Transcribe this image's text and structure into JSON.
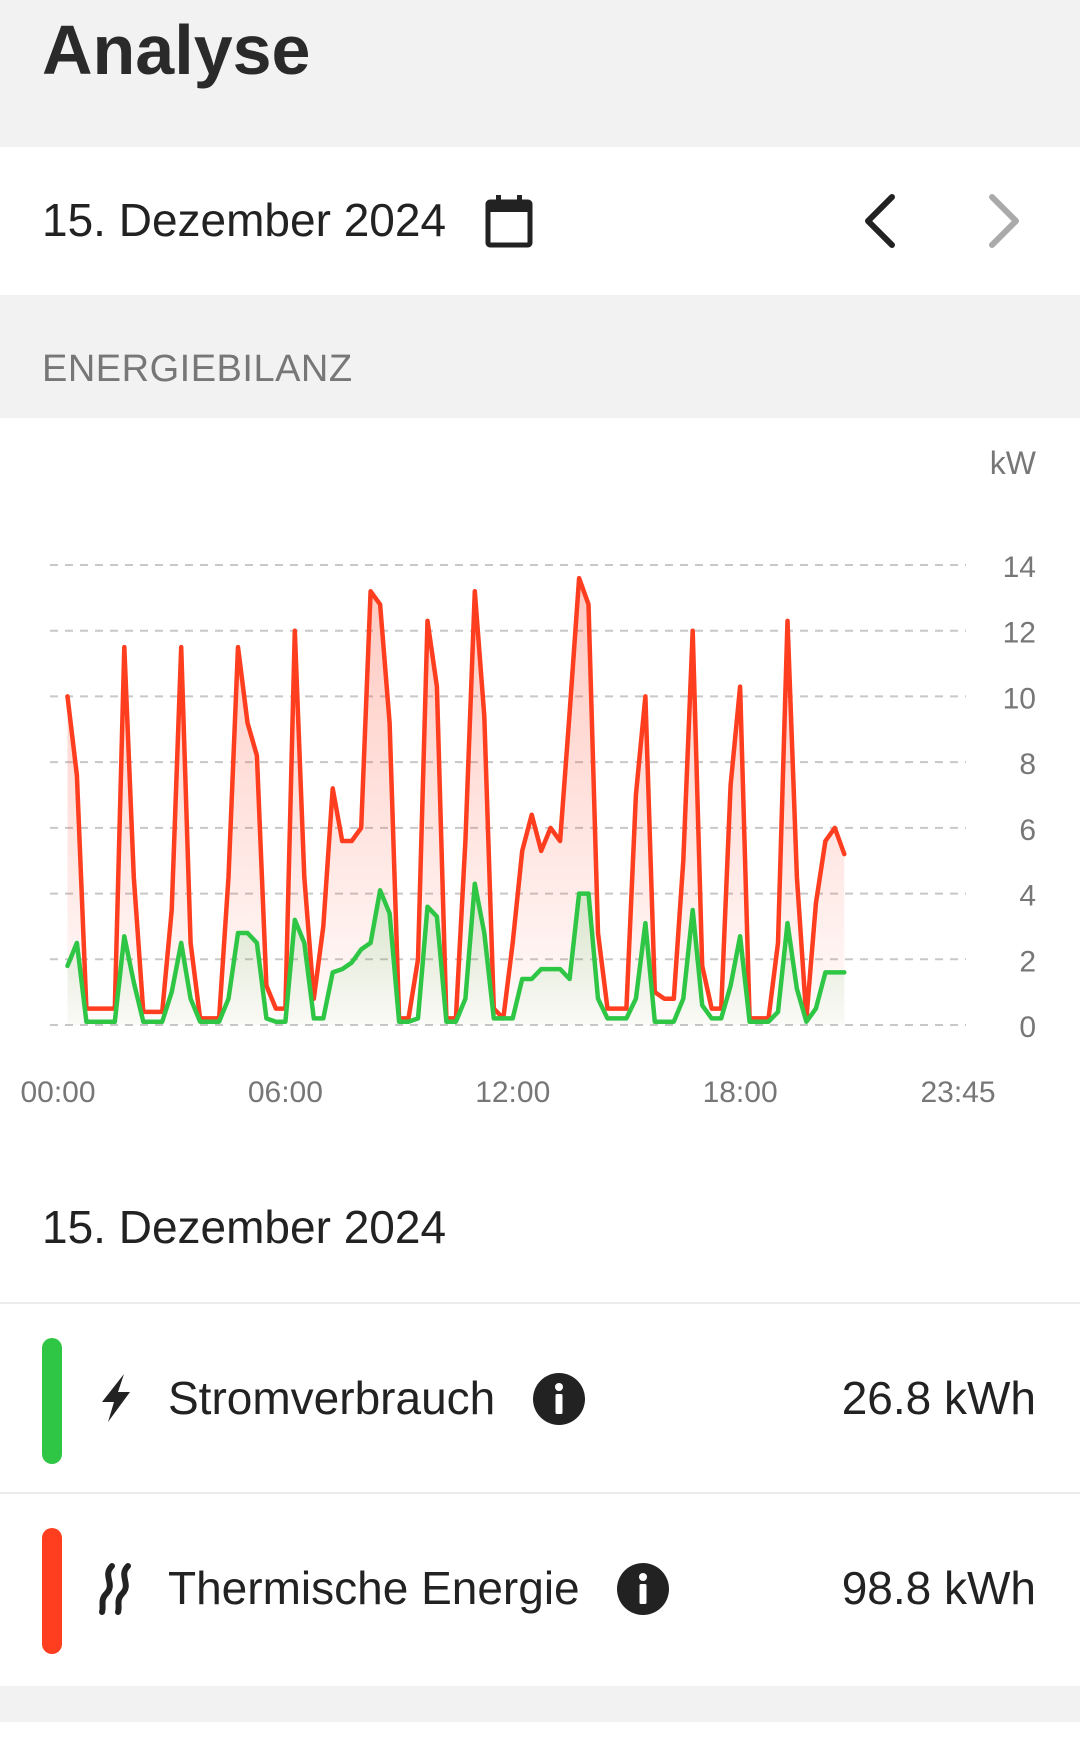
{
  "header": {
    "title": "Analyse"
  },
  "date_bar": {
    "date": "15. Dezember 2024",
    "calendar_icon": "calendar-icon",
    "prev_icon": "chevron-left-icon",
    "next_icon": "chevron-right-icon"
  },
  "section": {
    "label": "ENERGIEBILANZ"
  },
  "chart_data": {
    "type": "area",
    "ylabel": "kW",
    "ylim": [
      0,
      14
    ],
    "yticks": [
      "14",
      "12",
      "10",
      "8",
      "6",
      "4",
      "2",
      "0"
    ],
    "xticks": [
      "00:00",
      "06:00",
      "12:00",
      "18:00",
      "23:45"
    ],
    "grid": true,
    "x_hours": [
      0.25,
      0.5,
      0.75,
      1,
      1.25,
      1.5,
      1.75,
      2,
      2.25,
      2.5,
      2.75,
      3,
      3.25,
      3.5,
      3.75,
      4,
      4.25,
      4.5,
      4.75,
      5,
      5.25,
      5.5,
      5.75,
      6,
      6.25,
      6.5,
      6.75,
      7,
      7.25,
      7.5,
      7.75,
      8,
      8.25,
      8.5,
      8.75,
      9,
      9.25,
      9.5,
      9.75,
      10,
      10.25,
      10.5,
      10.75,
      11,
      11.25,
      11.5,
      11.75,
      12,
      12.25,
      12.5,
      12.75,
      13,
      13.25,
      13.5,
      13.75,
      14,
      14.25,
      14.5,
      14.75,
      15,
      15.25,
      15.5,
      15.75,
      16,
      16.25,
      16.5,
      16.75,
      17,
      17.25,
      17.5,
      17.75,
      18,
      18.25,
      18.5,
      18.75,
      19,
      19.25,
      19.5,
      19.75,
      20,
      20.25,
      20.5,
      20.75,
      21,
      21.25,
      21.5,
      21.75
    ],
    "series": [
      {
        "name": "Thermische Energie",
        "color": "#ff3d1f",
        "values": [
          10.0,
          7.6,
          0.5,
          0.5,
          0.5,
          0.5,
          11.5,
          4.5,
          0.4,
          0.4,
          0.4,
          3.5,
          11.5,
          2.5,
          0.2,
          0.2,
          0.2,
          4.5,
          11.5,
          9.2,
          8.2,
          1.2,
          0.5,
          0.5,
          12.0,
          4.5,
          0.8,
          3.0,
          7.2,
          5.6,
          5.6,
          6.0,
          13.2,
          12.8,
          9.2,
          0.2,
          0.2,
          2.0,
          12.3,
          10.3,
          0.2,
          0.2,
          5.6,
          13.2,
          9.4,
          0.5,
          0.2,
          2.5,
          5.3,
          6.4,
          5.3,
          6.0,
          5.6,
          9.5,
          13.6,
          12.8,
          2.8,
          0.5,
          0.5,
          0.5,
          7.0,
          10.0,
          1.0,
          0.8,
          0.8,
          5.0,
          12.0,
          1.8,
          0.5,
          0.5,
          7.3,
          10.3,
          0.2,
          0.2,
          0.2,
          2.5,
          12.3,
          4.5,
          0.2,
          3.7,
          5.6,
          6.0,
          5.2
        ]
      },
      {
        "name": "Stromverbrauch",
        "color": "#2fc646",
        "values": [
          1.8,
          2.5,
          0.1,
          0.1,
          0.1,
          0.1,
          2.7,
          1.3,
          0.1,
          0.1,
          0.1,
          1.0,
          2.5,
          0.8,
          0.1,
          0.1,
          0.1,
          0.8,
          2.8,
          2.8,
          2.5,
          0.2,
          0.1,
          0.1,
          3.2,
          2.5,
          0.2,
          0.2,
          1.6,
          1.7,
          1.9,
          2.3,
          2.5,
          4.1,
          3.4,
          0.1,
          0.1,
          0.2,
          3.6,
          3.3,
          0.1,
          0.1,
          0.8,
          4.3,
          2.8,
          0.2,
          0.2,
          0.2,
          1.4,
          1.4,
          1.7,
          1.7,
          1.7,
          1.4,
          4.0,
          4.0,
          0.8,
          0.2,
          0.2,
          0.2,
          0.8,
          3.1,
          0.1,
          0.1,
          0.1,
          0.8,
          3.5,
          0.6,
          0.2,
          0.2,
          1.2,
          2.7,
          0.1,
          0.1,
          0.1,
          0.4,
          3.1,
          1.1,
          0.1,
          0.5,
          1.6,
          1.6,
          1.6
        ]
      }
    ]
  },
  "summary": {
    "date": "15. Dezember 2024",
    "rows": [
      {
        "label": "Stromverbrauch",
        "value": "26.8 kWh",
        "color": "#2fc646",
        "icon": "lightning-icon"
      },
      {
        "label": "Thermische Energie",
        "value": "98.8 kWh",
        "color": "#ff3d1f",
        "icon": "heat-waves-icon"
      }
    ]
  }
}
